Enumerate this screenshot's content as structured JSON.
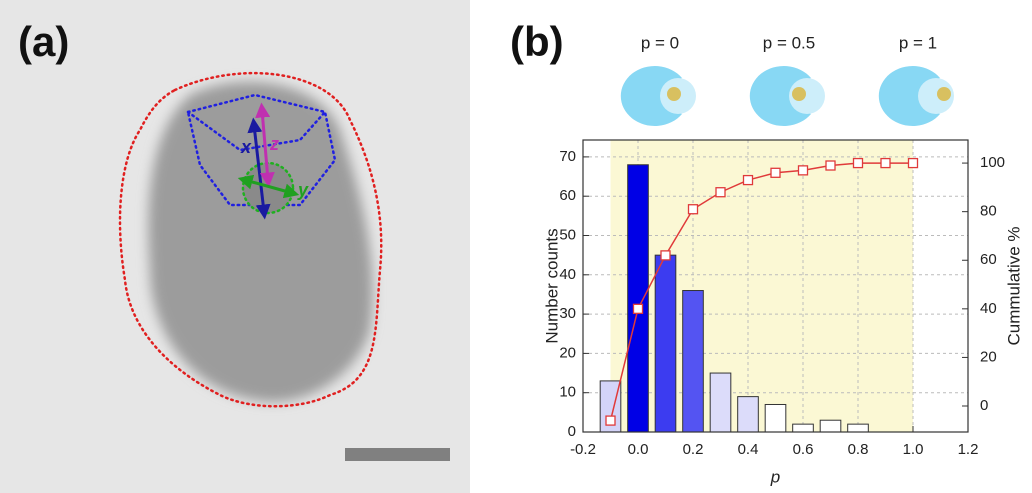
{
  "panel_a": {
    "label": "(a)",
    "axis_labels": [
      "x",
      "y",
      "z"
    ]
  },
  "chart_data": {
    "type": "bar",
    "panel_label": "(b)",
    "schematic_labels": [
      "p = 0",
      "p = 0.5",
      "p = 1"
    ],
    "xlabel": "p",
    "ylabel": "Number counts",
    "y2label": "Cummulative %",
    "xlim": [
      -0.2,
      1.2
    ],
    "xticks": [
      -0.2,
      {
        "value": 0,
        "label": "0.0"
      },
      0.2,
      0.4,
      0.6,
      0.8,
      {
        "value": 1,
        "label": "1.0"
      },
      1.2
    ],
    "ylim": [
      0,
      74.3
    ],
    "yticks": [
      0,
      10,
      20,
      30,
      40,
      50,
      60,
      70
    ],
    "y2lim": [
      -10.7,
      109.5
    ],
    "y2ticks": [
      0,
      20,
      40,
      60,
      80,
      100
    ],
    "grid": true,
    "highlight_xrange": [
      -0.1,
      1.0
    ],
    "highlight_color": "#fbf8d4",
    "series": [
      {
        "type": "bar",
        "x": [
          -0.1,
          0,
          0.1,
          0.2,
          0.3,
          0.4,
          0.5,
          0.6,
          0.7,
          0.8
        ],
        "values": [
          13,
          68,
          45,
          36,
          15,
          9,
          7,
          2,
          3,
          2
        ],
        "colors": [
          "#d4d4f8",
          "#0000e6",
          "#3c3cf0",
          "#5454f2",
          "#dcdcfa",
          "#dcdcfa",
          "#ffffff",
          "#ffffff",
          "#ffffff",
          "#ffffff"
        ]
      },
      {
        "type": "line",
        "axis": "y2",
        "color": "#e03a3a",
        "x": [
          -0.1,
          0,
          0.1,
          0.2,
          0.3,
          0.4,
          0.5,
          0.6,
          0.7,
          0.8,
          0.9,
          1.0
        ],
        "values": [
          -6,
          40,
          62,
          81,
          88,
          93,
          96,
          97,
          99,
          100,
          100,
          100
        ]
      }
    ]
  }
}
